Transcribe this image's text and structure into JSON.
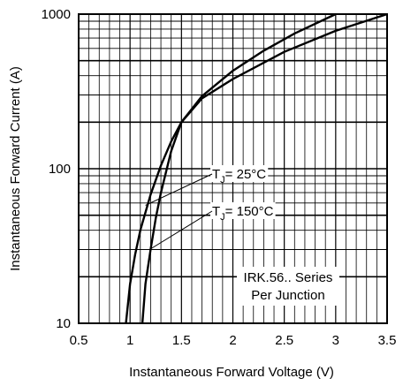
{
  "chart_data": {
    "type": "line",
    "title": "",
    "xlabel": "Instantaneous Forward Voltage (V)",
    "ylabel": "Instantaneous Forward Current (A)",
    "x_scale": "linear",
    "y_scale": "log",
    "xlim": [
      0.5,
      3.5
    ],
    "ylim": [
      10,
      1000
    ],
    "x_ticks": [
      "0.5",
      "1",
      "1.5",
      "2",
      "2.5",
      "3",
      "3.5"
    ],
    "y_ticks": [
      "10",
      "100",
      "1000"
    ],
    "grid": true,
    "series": [
      {
        "name": "25°C",
        "x": [
          0.96,
          1.0,
          1.05,
          1.1,
          1.2,
          1.3,
          1.4,
          1.5,
          1.7,
          2.0,
          2.3,
          2.6,
          3.0
        ],
        "y": [
          10,
          18,
          28,
          40,
          68,
          105,
          150,
          200,
          295,
          430,
          580,
          750,
          1000
        ]
      },
      {
        "name": "150°C",
        "x": [
          1.12,
          1.15,
          1.2,
          1.25,
          1.3,
          1.4,
          1.5,
          1.7,
          2.0,
          2.5,
          3.0,
          3.5
        ],
        "y": [
          10,
          18,
          30,
          48,
          70,
          130,
          200,
          285,
          380,
          570,
          780,
          1000
        ]
      }
    ],
    "annotations": [
      {
        "prefix": "T",
        "sub": "J",
        "suffix": "= 25°C",
        "series": "25°C"
      },
      {
        "prefix": "T",
        "sub": "J",
        "suffix": "= 150°C",
        "series": "150°C"
      }
    ],
    "note_lines": [
      "IRK.56.. Series",
      "Per Junction"
    ]
  }
}
